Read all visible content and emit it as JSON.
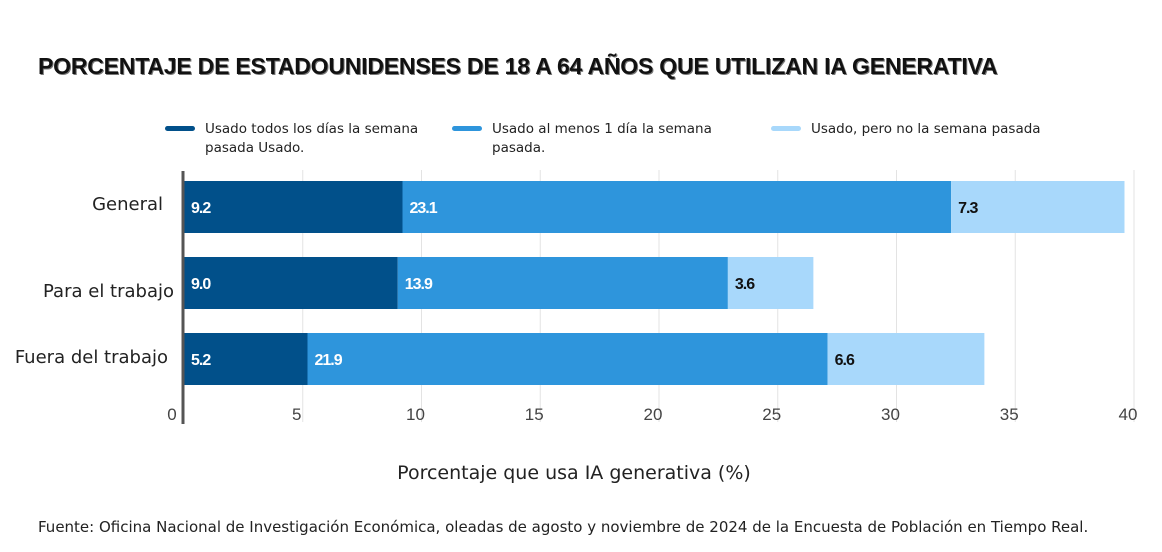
{
  "title": "PORCENTAJE DE ESTADOUNIDENSES DE 18 A 64 AÑOS QUE UTILIZAN IA GENERATIVA",
  "legend": [
    {
      "label": "Usado todos los días la semana pasada Usado.",
      "color": "#01508a"
    },
    {
      "label": "Usado al menos 1 día la semana pasada.",
      "color": "#2e95dc"
    },
    {
      "label": "Usado, pero no la semana pasada",
      "color": "#a8d8fb"
    }
  ],
  "xlabel": "Porcentaje que usa IA generativa (%)",
  "source": "Fuente: Oficina Nacional de Investigación Económica, oleadas de agosto y noviembre de 2024 de la Encuesta de Población en Tiempo Real.",
  "chart_data": {
    "type": "bar",
    "orientation": "horizontal",
    "stacked": true,
    "categories": [
      "General",
      "Para el trabajo",
      "Fuera del trabajo"
    ],
    "series": [
      {
        "name": "Usado todos los días la semana pasada Usado.",
        "values": [
          9.2,
          9.0,
          5.2
        ],
        "labels": [
          "9.2",
          "9.0",
          "5.2"
        ],
        "color": "#01508a",
        "label_color": "#ffffff"
      },
      {
        "name": "Usado al menos 1 día la semana pasada.",
        "values": [
          23.1,
          13.9,
          21.9
        ],
        "labels": [
          "23.1",
          "13.9",
          "21.9"
        ],
        "color": "#2e95dc",
        "label_color": "#ffffff"
      },
      {
        "name": "Usado, pero no la semana pasada",
        "values": [
          7.3,
          3.6,
          6.6
        ],
        "labels": [
          "7.3",
          "3.6",
          "6.6"
        ],
        "color": "#a8d8fb",
        "label_color": "#111111"
      }
    ],
    "xticks": [
      "0",
      "5",
      "10",
      "15",
      "20",
      "25",
      "30",
      "35",
      "40"
    ],
    "xlim": [
      0,
      40
    ],
    "xlabel": "Porcentaje que usa IA generativa (%)",
    "grid": true,
    "legend_position": "top"
  }
}
